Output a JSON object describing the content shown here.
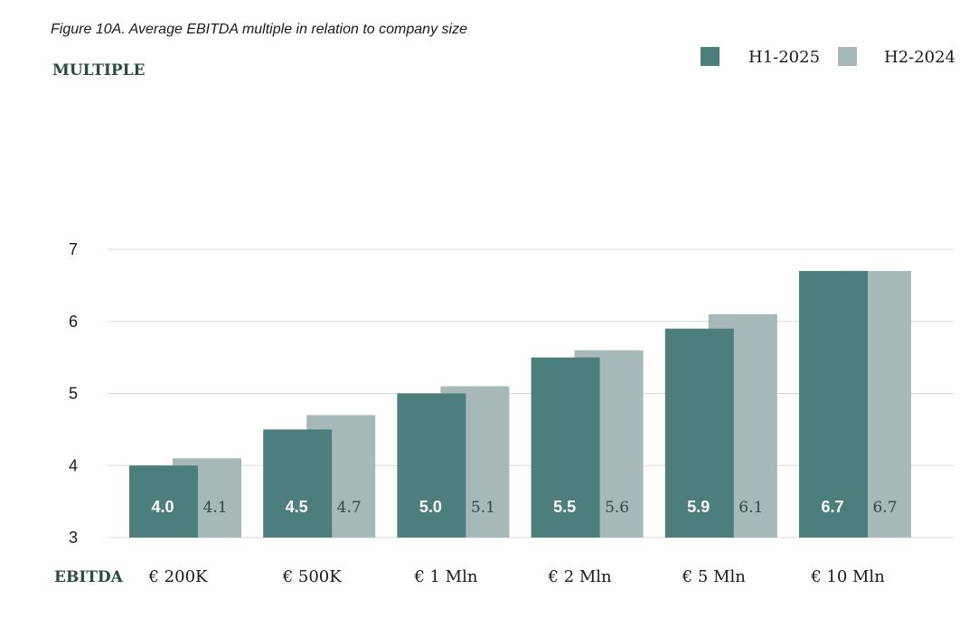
{
  "caption": "Figure 10A. Average EBITDA multiple in relation to company size",
  "colors": {
    "h1": "#4c7f7c",
    "h2": "#a7b8b9"
  },
  "chart_data": {
    "type": "bar",
    "title": "Figure 10A. Average EBITDA multiple in relation to company size",
    "ylabel": "MULTIPLE",
    "xlabel": "EBITDA",
    "categories": [
      "€ 200K",
      "€ 500K",
      "€ 1 Mln",
      "€ 2 Mln",
      "€ 5 Mln",
      "€ 10 Mln"
    ],
    "series": [
      {
        "name": "H1-2025",
        "values": [
          4.0,
          4.5,
          5.0,
          5.5,
          5.9,
          6.7
        ],
        "labels": [
          "4.0",
          "4.5",
          "5.0",
          "5.5",
          "5.9",
          "6.7"
        ]
      },
      {
        "name": "H2-2024",
        "values": [
          4.1,
          4.7,
          5.1,
          5.6,
          6.1,
          6.7
        ],
        "labels": [
          "4.1",
          "4.7",
          "5.1",
          "5.6",
          "6.1",
          "6.7"
        ]
      }
    ],
    "ylim": [
      3,
      7
    ],
    "yticks": [
      "3",
      "4",
      "5",
      "6",
      "7"
    ],
    "grid": true,
    "legend": "top-right"
  }
}
